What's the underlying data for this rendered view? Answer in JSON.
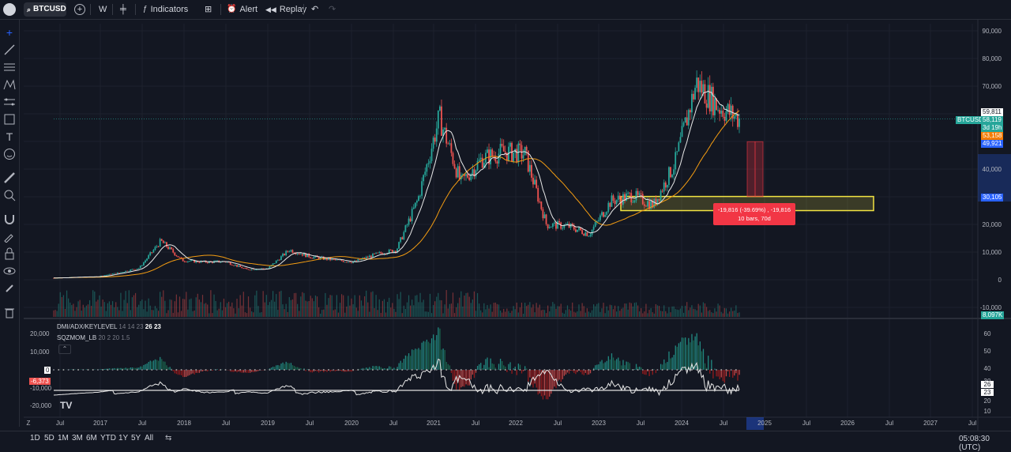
{
  "toolbar": {
    "symbol": "BTCUSD",
    "interval": "W",
    "indicators_label": "Indicators",
    "alert_label": "Alert",
    "replay_label": "Replay"
  },
  "price_axis": {
    "labels": [
      "90,000",
      "80,000",
      "70,000",
      "60,000",
      "50,000",
      "40,000",
      "30,000",
      "20,000",
      "10,000",
      "0",
      "-10,000"
    ]
  },
  "price_tags": {
    "symbol_tag": "BTCUSD",
    "high": "59,811",
    "last": "58,119",
    "countdown": "3d 19h",
    "ma_slow": "53,158",
    "ma_fast": "49,921",
    "zone": "30,105",
    "volume": "8,097K"
  },
  "measure_box": {
    "line1": "-19,816 (-39.69%) , -19,816",
    "line2": "10 bars, 70d"
  },
  "indicator_legend": {
    "dmi_name": "DMI/ADX/KEYLEVEL",
    "dmi_params": "14 14 23",
    "dmi_v1": "26",
    "dmi_v2": "23",
    "sqz_name": "SQZMOM_LB",
    "sqz_params": "20 2 20 1.5"
  },
  "indicator_left_axis": [
    "20,000",
    "10,000",
    "0",
    "-6,373",
    "-10,000",
    "-20,000"
  ],
  "indicator_right_axis": [
    "60",
    "50",
    "40",
    "30",
    "26",
    "23",
    "20",
    "10"
  ],
  "time_axis": [
    "Jul",
    "2017",
    "Jul",
    "2018",
    "Jul",
    "2019",
    "Jul",
    "2020",
    "Jul",
    "2021",
    "Jul",
    "2022",
    "Jul",
    "2023",
    "Jul",
    "2024",
    "Jul",
    "2025",
    "Jul",
    "2026",
    "Jul",
    "2027",
    "Jul"
  ],
  "bottom": {
    "ranges": [
      "1D",
      "5D",
      "1M",
      "3M",
      "6M",
      "YTD",
      "1Y",
      "5Y",
      "All"
    ],
    "clock": "05:08:30 (UTC)"
  },
  "colors": {
    "bg": "#131722",
    "up": "#26a69a",
    "down": "#ef5350",
    "ma_fast": "#e8e8e8",
    "ma_slow": "#f39c12",
    "zone": "#f1e342",
    "measure": "#f23645",
    "price_tag": "#2962ff"
  },
  "chart_data": {
    "type": "candlestick",
    "symbol": "BTCUSD",
    "interval": "W",
    "approx_close_by_quarter": [
      {
        "t": "2016-Q3",
        "close": 650
      },
      {
        "t": "2016-Q4",
        "close": 960
      },
      {
        "t": "2017-Q1",
        "close": 1100
      },
      {
        "t": "2017-Q2",
        "close": 2500
      },
      {
        "t": "2017-Q3",
        "close": 4300
      },
      {
        "t": "2017-Q4",
        "close": 14000
      },
      {
        "t": "2018-Q1",
        "close": 7000
      },
      {
        "t": "2018-Q2",
        "close": 6400
      },
      {
        "t": "2018-Q3",
        "close": 6600
      },
      {
        "t": "2018-Q4",
        "close": 3700
      },
      {
        "t": "2019-Q1",
        "close": 4100
      },
      {
        "t": "2019-Q2",
        "close": 10800
      },
      {
        "t": "2019-Q3",
        "close": 8300
      },
      {
        "t": "2019-Q4",
        "close": 7200
      },
      {
        "t": "2020-Q1",
        "close": 6400
      },
      {
        "t": "2020-Q2",
        "close": 9100
      },
      {
        "t": "2020-Q3",
        "close": 10800
      },
      {
        "t": "2020-Q4",
        "close": 29000
      },
      {
        "t": "2021-Q1",
        "close": 58800
      },
      {
        "t": "2021-Q2",
        "close": 35000
      },
      {
        "t": "2021-Q3",
        "close": 43800
      },
      {
        "t": "2021-Q4",
        "close": 46300
      },
      {
        "t": "2022-Q1",
        "close": 45500
      },
      {
        "t": "2022-Q2",
        "close": 19900
      },
      {
        "t": "2022-Q3",
        "close": 19400
      },
      {
        "t": "2022-Q4",
        "close": 16500
      },
      {
        "t": "2023-Q1",
        "close": 28400
      },
      {
        "t": "2023-Q2",
        "close": 30400
      },
      {
        "t": "2023-Q3",
        "close": 27000
      },
      {
        "t": "2023-Q4",
        "close": 42200
      },
      {
        "t": "2024-Q1",
        "close": 71300
      },
      {
        "t": "2024-Q2",
        "close": 62700
      },
      {
        "t": "2024-Q3",
        "close": 58119
      }
    ],
    "yrange": [
      -10000,
      90000
    ],
    "zone": {
      "low": 25000,
      "high": 30105
    },
    "measure": {
      "from": 49921,
      "to": 30105
    }
  }
}
